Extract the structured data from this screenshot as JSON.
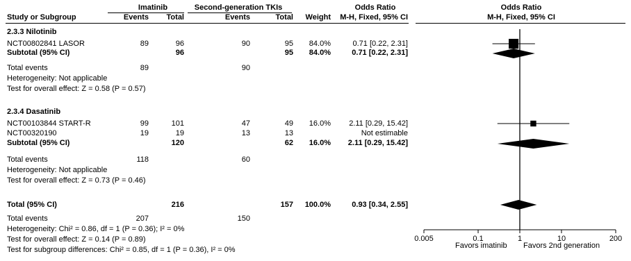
{
  "headers": {
    "study": "Study or Subgroup",
    "imatinib": "Imatinib",
    "second_gen": "Second-generation TKIs",
    "events": "Events",
    "total": "Total",
    "events2": "Events",
    "total2": "Total",
    "weight": "Weight",
    "or_text_title": "Odds Ratio",
    "or_text_sub": "M-H, Fixed, 95% CI",
    "or_plot_title": "Odds Ratio",
    "or_plot_sub": "M-H, Fixed, 95% CI"
  },
  "subgroups": [
    {
      "title": "2.3.3 Nilotinib",
      "studies": [
        {
          "name": "NCT00802841 LASOR",
          "e1": "89",
          "t1": "96",
          "e2": "90",
          "t2": "95",
          "weight": "84.0%",
          "ci": "0.71 [0.22, 2.31]"
        }
      ],
      "subtotal": {
        "label": "Subtotal (95% CI)",
        "t1": "96",
        "t2": "95",
        "weight": "84.0%",
        "ci": "0.71 [0.22, 2.31]"
      },
      "total_events": {
        "label": "Total events",
        "e1": "89",
        "e2": "90"
      },
      "heterogeneity": "Heterogeneity: Not applicable",
      "overall": "Test for overall effect: Z = 0.58 (P = 0.57)"
    },
    {
      "title": "2.3.4 Dasatinib",
      "studies": [
        {
          "name": "NCT00103844 START-R",
          "e1": "99",
          "t1": "101",
          "e2": "47",
          "t2": "49",
          "weight": "16.0%",
          "ci": "2.11 [0.29, 15.42]"
        },
        {
          "name": "NCT00320190",
          "e1": "19",
          "t1": "19",
          "e2": "13",
          "t2": "13",
          "weight": "",
          "ci": "Not estimable"
        }
      ],
      "subtotal": {
        "label": "Subtotal (95% CI)",
        "t1": "120",
        "t2": "62",
        "weight": "16.0%",
        "ci": "2.11 [0.29, 15.42]"
      },
      "total_events": {
        "label": "Total events",
        "e1": "118",
        "e2": "60"
      },
      "heterogeneity": "Heterogeneity: Not applicable",
      "overall": "Test for overall effect: Z = 0.73 (P = 0.46)"
    }
  ],
  "total": {
    "label": "Total (95% CI)",
    "t1": "216",
    "t2": "157",
    "weight": "100.0%",
    "ci": "0.93 [0.34, 2.55]",
    "events_label": "Total events",
    "e1": "207",
    "e2": "150",
    "heterogeneity": "Heterogeneity: Chi² = 0.86, df = 1 (P = 0.36); I² = 0%",
    "overall": "Test for overall effect: Z = 0.14 (P = 0.89)",
    "subgroup_diff": "Test for subgroup differences: Chi² = 0.85, df = 1 (P = 0.36), I² = 0%"
  },
  "axis": {
    "ticks": [
      "0.005",
      "0.1",
      "1",
      "10",
      "200"
    ],
    "favors_left": "Favors imatinib",
    "favors_right": "Favors 2nd generation"
  },
  "chart_data": {
    "type": "forest",
    "scale": "log",
    "xlim": [
      0.005,
      200
    ],
    "xticks": [
      0.005,
      0.1,
      1,
      10,
      200
    ],
    "reference_line": 1,
    "studies": [
      {
        "name": "NCT00802841 LASOR",
        "or": 0.71,
        "lo": 0.22,
        "hi": 2.31,
        "weight": 84.0
      },
      {
        "name": "NCT00103844 START-R",
        "or": 2.11,
        "lo": 0.29,
        "hi": 15.42,
        "weight": 16.0
      }
    ],
    "diamonds": [
      {
        "name": "Subtotal 2.3.3 Nilotinib",
        "or": 0.71,
        "lo": 0.22,
        "hi": 2.31
      },
      {
        "name": "Subtotal 2.3.4 Dasatinib",
        "or": 2.11,
        "lo": 0.29,
        "hi": 15.42
      },
      {
        "name": "Total",
        "or": 0.93,
        "lo": 0.34,
        "hi": 2.55
      }
    ]
  }
}
